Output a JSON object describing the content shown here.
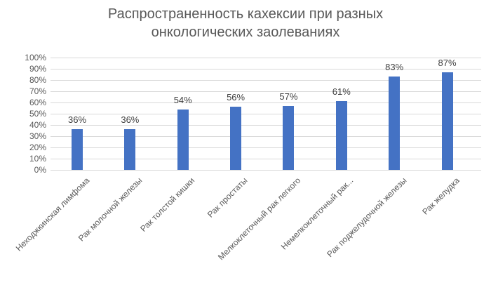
{
  "header": {
    "title_line1": "Распространенность кахексии при разных",
    "title_line2": "онкологических заолеваниях"
  },
  "chart_data": {
    "type": "bar",
    "title": "Распространенность кахексии при разных онкологических заолеваниях",
    "categories": [
      "Неходжкинская лимфома",
      "Рак молочной железы",
      "Рак толстой кишки",
      "Рак простаты",
      "Мелкоклеточный рак легкого",
      "Немелкоклеточный рак...",
      "Рак поджелудочной железы",
      "Рак желудка"
    ],
    "values": [
      36,
      36,
      54,
      56,
      57,
      61,
      83,
      87
    ],
    "data_labels": [
      "36%",
      "36%",
      "54%",
      "56%",
      "57%",
      "61%",
      "83%",
      "87%"
    ],
    "xlabel": "",
    "ylabel": "",
    "ylim": [
      0,
      100
    ],
    "y_tick_step": 10,
    "y_ticks": [
      "0%",
      "10%",
      "20%",
      "30%",
      "40%",
      "50%",
      "60%",
      "70%",
      "80%",
      "90%",
      "100%"
    ],
    "grid": true,
    "legend_position": "none",
    "colors": {
      "bar": "#4472C4",
      "gridline": "#D9D9D9",
      "axis_labels": "#595959",
      "data_labels": "#404040",
      "title": "#595959"
    }
  }
}
